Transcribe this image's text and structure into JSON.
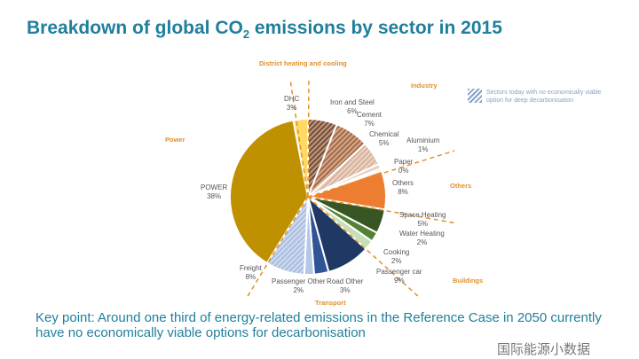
{
  "title": {
    "main": "Breakdown of global CO",
    "sub": "2",
    "rest": " emissions by sector in 2015"
  },
  "legend": "Sectors today with no economically viable option for deep decarbonisation",
  "sectors": {
    "dhc": "District heating and cooling",
    "industry": "Industry",
    "power": "Power",
    "others": "Others",
    "buildings": "Buildings",
    "transport": "Transport"
  },
  "chart_data": {
    "type": "pie",
    "title": "Breakdown of global CO2 emissions by sector in 2015",
    "slices": [
      {
        "name": "Iron and Steel",
        "label": "6%",
        "value": 6,
        "color": "#7b4a2c",
        "striped": true
      },
      {
        "name": "Cement",
        "label": "7%",
        "value": 7,
        "color": "#a8673e",
        "striped": true
      },
      {
        "name": "Chemical",
        "label": "5%",
        "value": 5,
        "color": "#d8b29a",
        "striped": true
      },
      {
        "name": "Aluminium",
        "label": "1%",
        "value": 1,
        "color": "#e8d2bd",
        "striped": false
      },
      {
        "name": "Paper",
        "label": "0%",
        "value": 0.5,
        "color": "#f3e6d6",
        "striped": false
      },
      {
        "name": "Others",
        "label": "8%",
        "value": 8,
        "color": "#ed7d31",
        "striped": false
      },
      {
        "name": "Space Heating",
        "label": "5%",
        "value": 5,
        "color": "#375623",
        "striped": false
      },
      {
        "name": "Water Heating",
        "label": "2%",
        "value": 2,
        "color": "#548235",
        "striped": false
      },
      {
        "name": "Cooking",
        "label": "2%",
        "value": 2,
        "color": "#c5e0b4",
        "striped": false
      },
      {
        "name": "Passenger car",
        "label": "9%",
        "value": 9,
        "color": "#203864",
        "striped": false
      },
      {
        "name": "Road Other",
        "label": "3%",
        "value": 3,
        "color": "#2f5597",
        "striped": false
      },
      {
        "name": "Passenger Other",
        "label": "2%",
        "value": 2,
        "color": "#b4c7e7",
        "striped": false
      },
      {
        "name": "Freight",
        "label": "8%",
        "value": 8,
        "color": "#a9bde0",
        "striped": true
      },
      {
        "name": "POWER",
        "label": "38%",
        "value": 38,
        "color": "#bf9000",
        "striped": false
      },
      {
        "name": "DHC",
        "label": "3%",
        "value": 3,
        "color": "#ffd966",
        "striped": false
      }
    ]
  },
  "key_point": "Key point: Around one third of energy-related emissions in the Reference Case in 2050 currently have no economically viable options for decarbonisation",
  "watermark": "国际能源小数据"
}
